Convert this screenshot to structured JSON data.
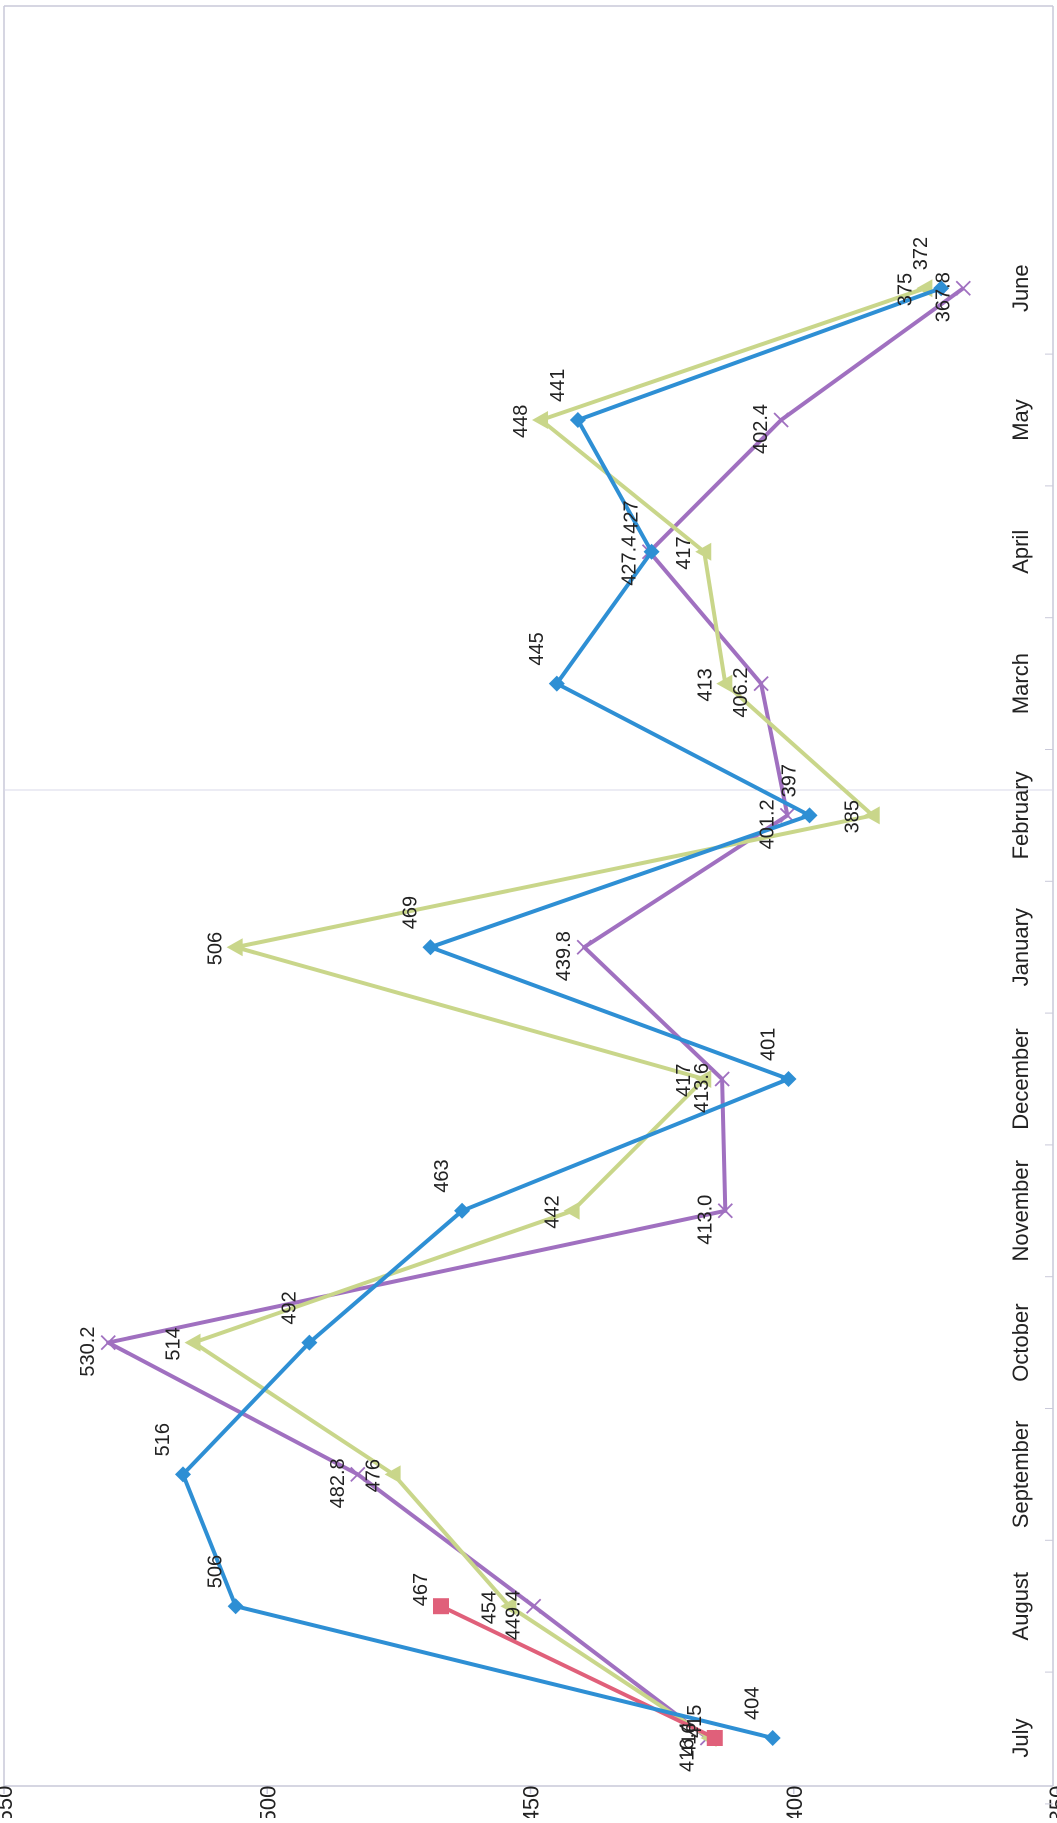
{
  "chart_data": {
    "type": "line",
    "title": "",
    "xlabel": "",
    "ylabel": "",
    "orientation": "rotated-90-clockwise",
    "categories": [
      "July",
      "August",
      "September",
      "October",
      "November",
      "December",
      "January",
      "February",
      "March",
      "April",
      "May",
      "June"
    ],
    "ylim": [
      350,
      550
    ],
    "yticks": [
      "350",
      "400",
      "450",
      "500",
      "550"
    ],
    "grid": false,
    "legend": "none",
    "series": [
      {
        "color": "#2E8FD4",
        "marker": "diamond",
        "values": [
          404,
          506,
          516,
          492,
          463,
          401,
          469,
          397,
          445,
          427,
          441,
          372
        ],
        "labels": [
          "404",
          "506",
          "516",
          "492",
          "463",
          "401",
          "469",
          "397",
          "445",
          "427",
          "441",
          "372"
        ]
      },
      {
        "color": "#E0607A",
        "marker": "square",
        "values": [
          415,
          467,
          null,
          null,
          null,
          null,
          null,
          null,
          null,
          null,
          null,
          null
        ],
        "labels": [
          "415",
          "467",
          "",
          "",
          "",
          "",
          "",
          "",
          "",
          "",
          "",
          ""
        ]
      },
      {
        "color": "#C9D68A",
        "marker": "triangle",
        "values": [
          416,
          454,
          476,
          514,
          442,
          417,
          506,
          385,
          413,
          417,
          448,
          375
        ],
        "labels": [
          "416",
          "454",
          "476",
          "514",
          "442",
          "417",
          "506",
          "385",
          "413",
          "417",
          "448",
          "375"
        ]
      },
      {
        "color": "#A070C0",
        "marker": "x",
        "values": [
          416.4,
          449.4,
          482.8,
          530.2,
          413.0,
          413.6,
          439.8,
          401.2,
          406.2,
          427.4,
          402.4,
          367.8
        ],
        "labels": [
          "416.4",
          "449.4",
          "482.8",
          "530.2",
          "413.0",
          "413.6",
          "439.8",
          "401.2",
          "406.2",
          "427.4",
          "402.4",
          "367.8"
        ]
      }
    ]
  }
}
